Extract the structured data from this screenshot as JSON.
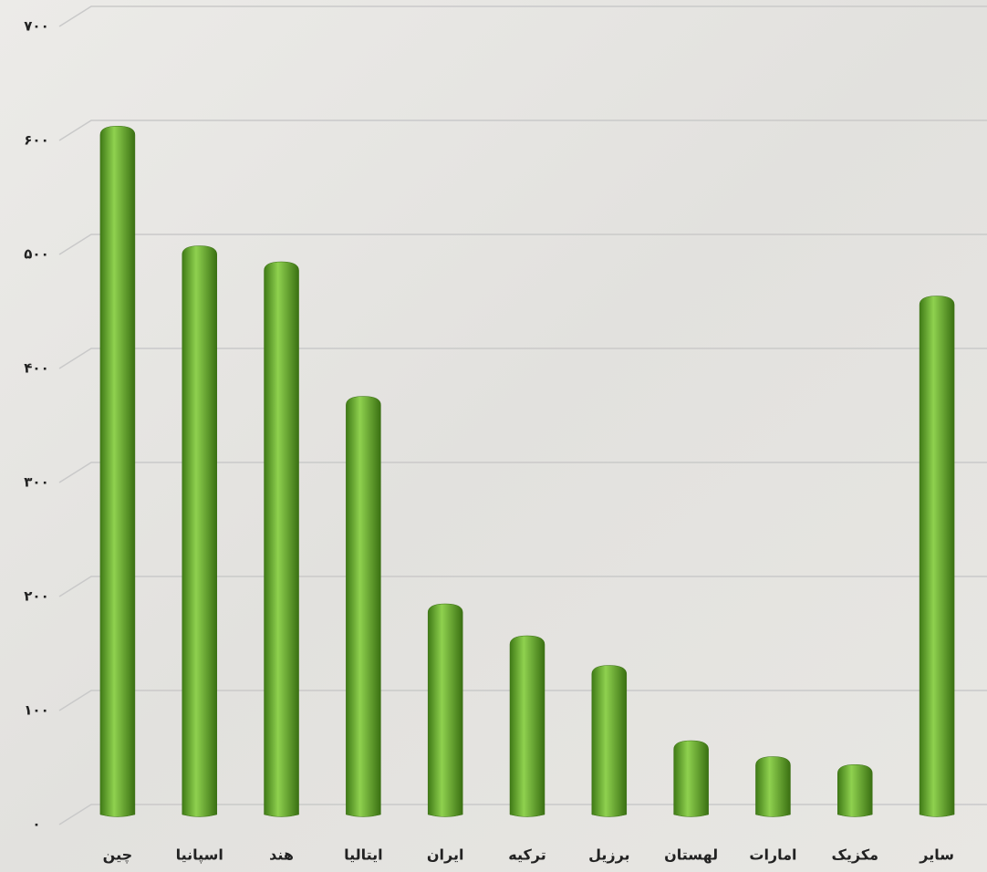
{
  "chart_data": {
    "type": "bar",
    "categories": [
      "چین",
      "اسپانیا",
      "هند",
      "ایتالیا",
      "ایران",
      "ترکیه",
      "برزیل",
      "لهستان",
      "امارات",
      "مکزیک",
      "سایر"
    ],
    "values": [
      595,
      490,
      476,
      358,
      176,
      148,
      122,
      56,
      42,
      35,
      446
    ],
    "color": "#6aaa32",
    "ylim": [
      0,
      700
    ],
    "yticks": [
      {
        "value": 0,
        "label": "۰"
      },
      {
        "value": 100,
        "label": "۱۰۰"
      },
      {
        "value": 200,
        "label": "۲۰۰"
      },
      {
        "value": 300,
        "label": "۳۰۰"
      },
      {
        "value": 400,
        "label": "۴۰۰"
      },
      {
        "value": 500,
        "label": "۵۰۰"
      },
      {
        "value": 600,
        "label": "۶۰۰"
      },
      {
        "value": 700,
        "label": "۷۰۰"
      }
    ],
    "grid": true
  }
}
